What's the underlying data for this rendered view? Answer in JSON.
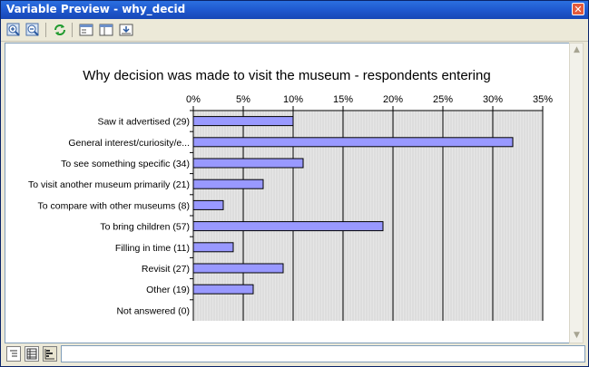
{
  "window": {
    "title": "Variable Preview - why_decid",
    "close_symbol": "✕"
  },
  "toolbar": {
    "buttons": [
      "zoom-in-icon",
      "zoom-out-icon",
      "refresh-icon",
      "layout-icon",
      "window-icon",
      "export-icon"
    ]
  },
  "statusbar": {
    "views": [
      "list-view-icon",
      "table-view-icon",
      "chart-view-icon"
    ]
  },
  "colors": {
    "bar_fill": "#9999ff",
    "plot_bg": "#e6e6e6",
    "titlebar": "#1f59cf"
  },
  "chart_data": {
    "type": "bar",
    "orientation": "horizontal",
    "title": "Why decision was made to visit the museum - respondents entering",
    "categories": [
      "Saw it advertised (29)",
      "General interest/curiosity/e...",
      "To see something specific (34)",
      "To visit another museum primarily (21)",
      "To compare with other museums (8)",
      "To bring children (57)",
      "Filling in time (11)",
      "Revisit (27)",
      "Other (19)",
      "Not answered (0)"
    ],
    "values": [
      10.0,
      32.0,
      11.0,
      7.0,
      3.0,
      19.0,
      4.0,
      9.0,
      6.0,
      0
    ],
    "xlim": [
      0,
      35
    ],
    "xticks": [
      "0%",
      "5%",
      "10%",
      "15%",
      "20%",
      "25%",
      "30%",
      "35%"
    ],
    "x_axis_position": "top",
    "grid": true
  }
}
